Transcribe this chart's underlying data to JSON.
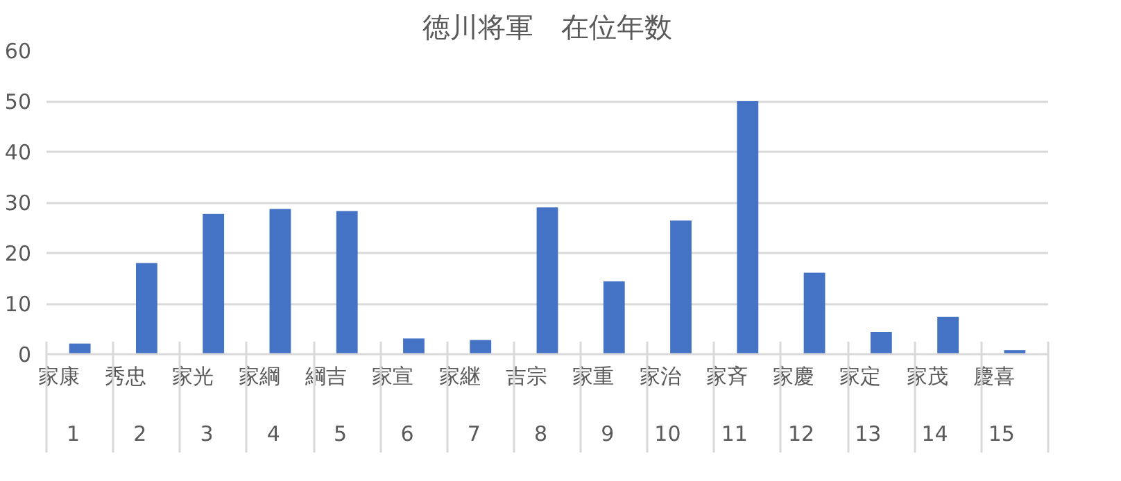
{
  "chart_data": {
    "type": "bar",
    "title": "徳川将軍　在位年数",
    "categories": [
      "家康\n1",
      "秀忠\n2",
      "家光\n3",
      "家綱\n4",
      "綱吉\n5",
      "家宣\n6",
      "家継\n7",
      "吉宗\n8",
      "家重\n9",
      "家治\n10",
      "家斉\n11",
      "家慶\n12",
      "家定\n13",
      "家茂\n14",
      "慶喜\n15"
    ],
    "values": [
      2.1,
      18.0,
      27.7,
      28.7,
      28.3,
      3.1,
      2.8,
      29.0,
      14.4,
      26.4,
      50,
      16.1,
      4.4,
      7.4,
      0.8
    ],
    "color": "#4472c4",
    "ylim": [
      0,
      60
    ],
    "yticks": [
      0,
      10,
      20,
      30,
      40,
      50,
      60
    ],
    "grid": "y"
  }
}
